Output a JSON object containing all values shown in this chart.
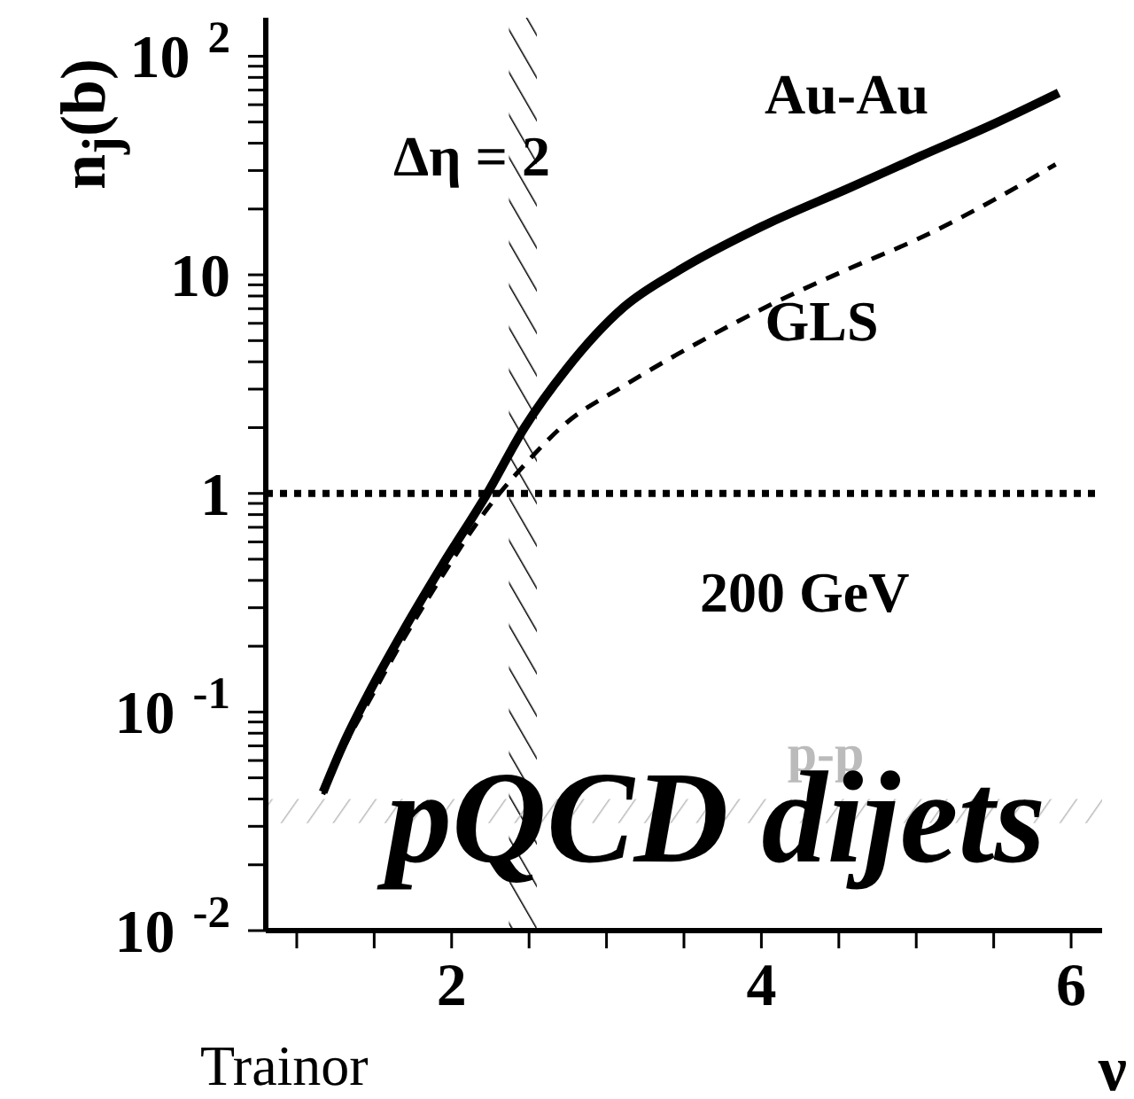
{
  "chart_data": {
    "type": "line",
    "xlabel": "ν",
    "ylabel": "n$_{j}$(b)",
    "log": "y",
    "legend": false,
    "grid": false,
    "xlim": [
      0.8,
      6.2
    ],
    "xticks": [
      {
        "value": 1,
        "label": null
      },
      {
        "value": 1.5,
        "label": null
      },
      2,
      {
        "value": 2.5,
        "label": null
      },
      {
        "value": 3,
        "label": null
      },
      {
        "value": 3.5,
        "label": null
      },
      4,
      {
        "value": 4.5,
        "label": null
      },
      {
        "value": 5,
        "label": null
      },
      {
        "value": 5.5,
        "label": null
      },
      6
    ],
    "ylim": [
      0.01,
      150
    ],
    "yticks": [
      {
        "value": 0.01,
        "label": "10$^{-2}$"
      },
      {
        "value": 0.02,
        "label": null
      },
      {
        "value": 0.03,
        "label": null
      },
      {
        "value": 0.04,
        "label": null
      },
      {
        "value": 0.05,
        "label": null
      },
      {
        "value": 0.06,
        "label": null
      },
      {
        "value": 0.07,
        "label": null
      },
      {
        "value": 0.08,
        "label": null
      },
      {
        "value": 0.09,
        "label": null
      },
      {
        "value": 0.1,
        "label": "10$^{-1}$"
      },
      {
        "value": 0.2,
        "label": null
      },
      {
        "value": 0.3,
        "label": null
      },
      {
        "value": 0.4,
        "label": null
      },
      {
        "value": 0.5,
        "label": null
      },
      {
        "value": 0.6,
        "label": null
      },
      {
        "value": 0.7,
        "label": null
      },
      {
        "value": 0.8,
        "label": null
      },
      {
        "value": 0.9,
        "label": null
      },
      1,
      {
        "value": 2,
        "label": null
      },
      {
        "value": 3,
        "label": null
      },
      {
        "value": 4,
        "label": null
      },
      {
        "value": 5,
        "label": null
      },
      {
        "value": 6,
        "label": null
      },
      {
        "value": 7,
        "label": null
      },
      {
        "value": 8,
        "label": null
      },
      {
        "value": 9,
        "label": null
      },
      10,
      {
        "value": 20,
        "label": null
      },
      {
        "value": 30,
        "label": null
      },
      {
        "value": 40,
        "label": null
      },
      {
        "value": 50,
        "label": null
      },
      {
        "value": 60,
        "label": null
      },
      {
        "value": 70,
        "label": null
      },
      {
        "value": 80,
        "label": null
      },
      {
        "value": 90,
        "label": null
      },
      {
        "value": 100,
        "label": "10$^{2}$"
      }
    ],
    "series": [
      {
        "name": "Au-Au",
        "color": "#000000",
        "line_style": "solid",
        "x": [
          1.17,
          1.3,
          1.46,
          1.68,
          1.94,
          2.23,
          2.47,
          2.74,
          3.11,
          3.47,
          4.0,
          4.57,
          5.03,
          5.5,
          5.92
        ],
        "values": [
          0.043,
          0.071,
          0.12,
          0.23,
          0.47,
          1.0,
          2.0,
          3.7,
          7.1,
          10.5,
          16.6,
          25,
          35,
          49,
          68
        ]
      },
      {
        "name": "GLS",
        "color": "#000000",
        "line_style": "dashed",
        "x": [
          1.17,
          1.3,
          1.46,
          1.68,
          1.94,
          2.23,
          2.47,
          2.74,
          3.11,
          3.66,
          4.11,
          4.57,
          5.03,
          5.5,
          5.9
        ],
        "values": [
          0.042,
          0.068,
          0.11,
          0.21,
          0.42,
          0.85,
          1.35,
          2.1,
          3.1,
          5.2,
          7.6,
          10.7,
          14.8,
          22,
          32
        ]
      }
    ],
    "ref_lines": [
      {
        "axis": "y",
        "value": 1,
        "label": null,
        "line_style": "dotted",
        "color": "#000000"
      }
    ],
    "bands": [
      {
        "axis": "x",
        "from": 2.37,
        "to": 2.55,
        "label": null,
        "color": "#000000"
      },
      {
        "axis": "y",
        "from": 0.031,
        "to": 0.04,
        "label": "p-p",
        "color": "#bbbbbb"
      }
    ],
    "annotations": [
      "Δη = 2",
      "200 GeV",
      "pQCD dijets",
      "Trainor"
    ]
  }
}
